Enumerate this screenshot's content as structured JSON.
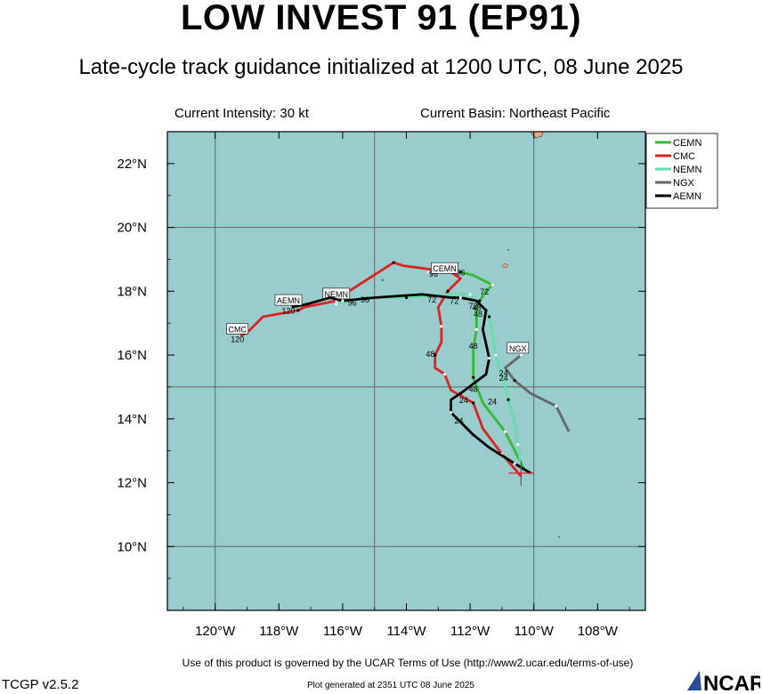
{
  "header": {
    "title": "LOW INVEST 91 (EP91)",
    "subtitle": "Late-cycle track guidance initialized at 1200 UTC, 08 June 2025",
    "intensity": "Current Intensity: 30 kt",
    "basin": "Current Basin: Northeast Pacific"
  },
  "footer": {
    "terms": "Use of this product is governed by the UCAR Terms of Use (http://www2.ucar.edu/terms-of-use)",
    "version": "TCGP v2.5.2",
    "plotted": "Plot generated at 2351 UTC   08 June 2025",
    "logo_text": "NCAR"
  },
  "map": {
    "lon_range": [
      -121.5,
      -106.5
    ],
    "lat_range": [
      8,
      23
    ],
    "ocean_color": "#99cccc",
    "land_color": "#e8a87c",
    "x_ticks": [
      {
        "lon": -120,
        "label": "120°W"
      },
      {
        "lon": -118,
        "label": "118°W"
      },
      {
        "lon": -116,
        "label": "116°W"
      },
      {
        "lon": -114,
        "label": "114°W"
      },
      {
        "lon": -112,
        "label": "112°W"
      },
      {
        "lon": -110,
        "label": "110°W"
      },
      {
        "lon": -108,
        "label": "108°W"
      }
    ],
    "y_ticks": [
      {
        "lat": 22,
        "label": "22°N"
      },
      {
        "lat": 20,
        "label": "20°N"
      },
      {
        "lat": 18,
        "label": "18°N"
      },
      {
        "lat": 16,
        "label": "16°N"
      },
      {
        "lat": 14,
        "label": "14°N"
      },
      {
        "lat": 12,
        "label": "12°N"
      },
      {
        "lat": 10,
        "label": "10°N"
      }
    ],
    "grid_lons": [
      -120,
      -115,
      -110
    ],
    "grid_lats": [
      20,
      15,
      10
    ],
    "initial_position": {
      "lon": -110.4,
      "lat": 12.3
    }
  },
  "chart_data": {
    "type": "track-map",
    "series": [
      {
        "name": "CEMN",
        "color": "#33bb33",
        "points": [
          [
            -110.3,
            12.4
          ],
          [
            -110.9,
            13.6
          ],
          [
            -111.6,
            14.5
          ],
          [
            -111.9,
            15.3
          ],
          [
            -111.9,
            16.2
          ],
          [
            -111.8,
            16.8
          ],
          [
            -111.8,
            17.5
          ],
          [
            -111.7,
            17.7
          ],
          [
            -111.5,
            18.0
          ],
          [
            -111.3,
            18.2
          ],
          [
            -111.9,
            18.5
          ],
          [
            -112.3,
            18.6
          ],
          [
            -112.8,
            18.6
          ],
          [
            -113.3,
            18.6
          ]
        ],
        "labels": [
          {
            "text": "24",
            "lon": -111.3,
            "lat": 14.45
          },
          {
            "text": "48",
            "lon": -111.9,
            "lat": 16.2
          },
          {
            "text": "72",
            "lon": -111.55,
            "lat": 17.9
          },
          {
            "text": "96",
            "lon": -112.3,
            "lat": 18.5
          }
        ],
        "end_label": null
      },
      {
        "name": "CMC",
        "color": "#dd2222",
        "points": [
          [
            -110.4,
            12.2
          ],
          [
            -111.0,
            12.9
          ],
          [
            -111.6,
            13.7
          ],
          [
            -111.9,
            14.5
          ],
          [
            -112.6,
            14.9
          ],
          [
            -112.8,
            15.4
          ],
          [
            -113.1,
            15.6
          ],
          [
            -113.1,
            16.0
          ],
          [
            -112.9,
            16.4
          ],
          [
            -112.9,
            16.9
          ],
          [
            -113.0,
            17.5
          ],
          [
            -112.7,
            18.0
          ],
          [
            -112.3,
            18.4
          ],
          [
            -112.6,
            18.6
          ],
          [
            -114.1,
            18.8
          ],
          [
            -114.4,
            18.9
          ],
          [
            -115.8,
            18.0
          ],
          [
            -116.2,
            17.7
          ],
          [
            -117.2,
            17.5
          ],
          [
            -117.4,
            17.4
          ],
          [
            -118.5,
            17.2
          ],
          [
            -119.0,
            16.7
          ],
          [
            -119.2,
            16.6
          ]
        ],
        "labels": [
          {
            "text": "48",
            "lon": -113.25,
            "lat": 15.95
          },
          {
            "text": "120",
            "lon": -119.3,
            "lat": 16.4
          }
        ],
        "end_label": {
          "text": "CMC",
          "lon": -119.3,
          "lat": 16.8
        }
      },
      {
        "name": "NEMN",
        "color": "#66ddaa",
        "points": [
          [
            -110.4,
            12.4
          ],
          [
            -110.5,
            13.2
          ],
          [
            -110.6,
            13.9
          ],
          [
            -110.8,
            14.6
          ],
          [
            -111.0,
            15.4
          ],
          [
            -111.2,
            16.0
          ],
          [
            -111.3,
            16.7
          ],
          [
            -111.4,
            17.2
          ],
          [
            -111.6,
            17.5
          ],
          [
            -112.0,
            17.9
          ],
          [
            -112.7,
            17.9
          ],
          [
            -114.0,
            17.8
          ],
          [
            -115.3,
            17.8
          ],
          [
            -116.2,
            17.6
          ]
        ],
        "labels": [
          {
            "text": "24",
            "lon": -110.95,
            "lat": 15.2
          },
          {
            "text": "48",
            "lon": -111.75,
            "lat": 17.2
          },
          {
            "text": "72",
            "lon": -112.5,
            "lat": 17.6
          },
          {
            "text": "96",
            "lon": -115.7,
            "lat": 17.55
          }
        ],
        "end_label": {
          "text": "NEMN",
          "lon": -116.2,
          "lat": 17.9
        }
      },
      {
        "name": "NGX",
        "color": "#666666",
        "points": [
          [
            -108.9,
            13.6
          ],
          [
            -109.3,
            14.4
          ],
          [
            -110.1,
            14.8
          ],
          [
            -110.6,
            15.2
          ],
          [
            -110.9,
            15.6
          ],
          [
            -110.4,
            16.0
          ]
        ],
        "labels": [
          {
            "text": "24",
            "lon": -110.95,
            "lat": 15.35
          }
        ],
        "end_label": {
          "text": "NGX",
          "lon": -110.5,
          "lat": 16.2
        }
      },
      {
        "name": "AEMN",
        "color": "#000000",
        "points": [
          [
            -110.1,
            12.3
          ],
          [
            -110.6,
            12.6
          ],
          [
            -111.4,
            13.1
          ],
          [
            -111.9,
            13.5
          ],
          [
            -112.3,
            13.9
          ],
          [
            -112.6,
            14.2
          ],
          [
            -112.6,
            14.6
          ],
          [
            -112.3,
            14.8
          ],
          [
            -111.5,
            15.4
          ],
          [
            -111.4,
            15.9
          ],
          [
            -111.6,
            16.8
          ],
          [
            -111.5,
            17.4
          ],
          [
            -111.8,
            17.7
          ],
          [
            -112.3,
            17.8
          ],
          [
            -112.6,
            17.8
          ],
          [
            -113.5,
            17.9
          ],
          [
            -115.0,
            17.8
          ],
          [
            -116.0,
            17.7
          ],
          [
            -116.4,
            17.8
          ],
          [
            -117.1,
            17.6
          ],
          [
            -117.6,
            17.5
          ]
        ],
        "labels": [
          {
            "text": "24",
            "lon": -112.2,
            "lat": 14.5
          },
          {
            "text": "24",
            "lon": -112.35,
            "lat": 13.85
          },
          {
            "text": "48",
            "lon": -111.9,
            "lat": 14.85
          },
          {
            "text": "48",
            "lon": -111.8,
            "lat": 17.4
          },
          {
            "text": "72",
            "lon": -113.2,
            "lat": 17.65
          },
          {
            "text": "72",
            "lon": -111.9,
            "lat": 17.45
          },
          {
            "text": "96",
            "lon": -113.15,
            "lat": 18.45
          },
          {
            "text": "96",
            "lon": -115.3,
            "lat": 17.65
          },
          {
            "text": "120",
            "lon": -117.7,
            "lat": 17.3
          }
        ],
        "end_label": {
          "text": "AEMN",
          "lon": -117.7,
          "lat": 17.7
        }
      }
    ],
    "extra_labels": [
      {
        "text": "CEMN",
        "lon": -112.8,
        "lat": 18.7
      }
    ]
  }
}
